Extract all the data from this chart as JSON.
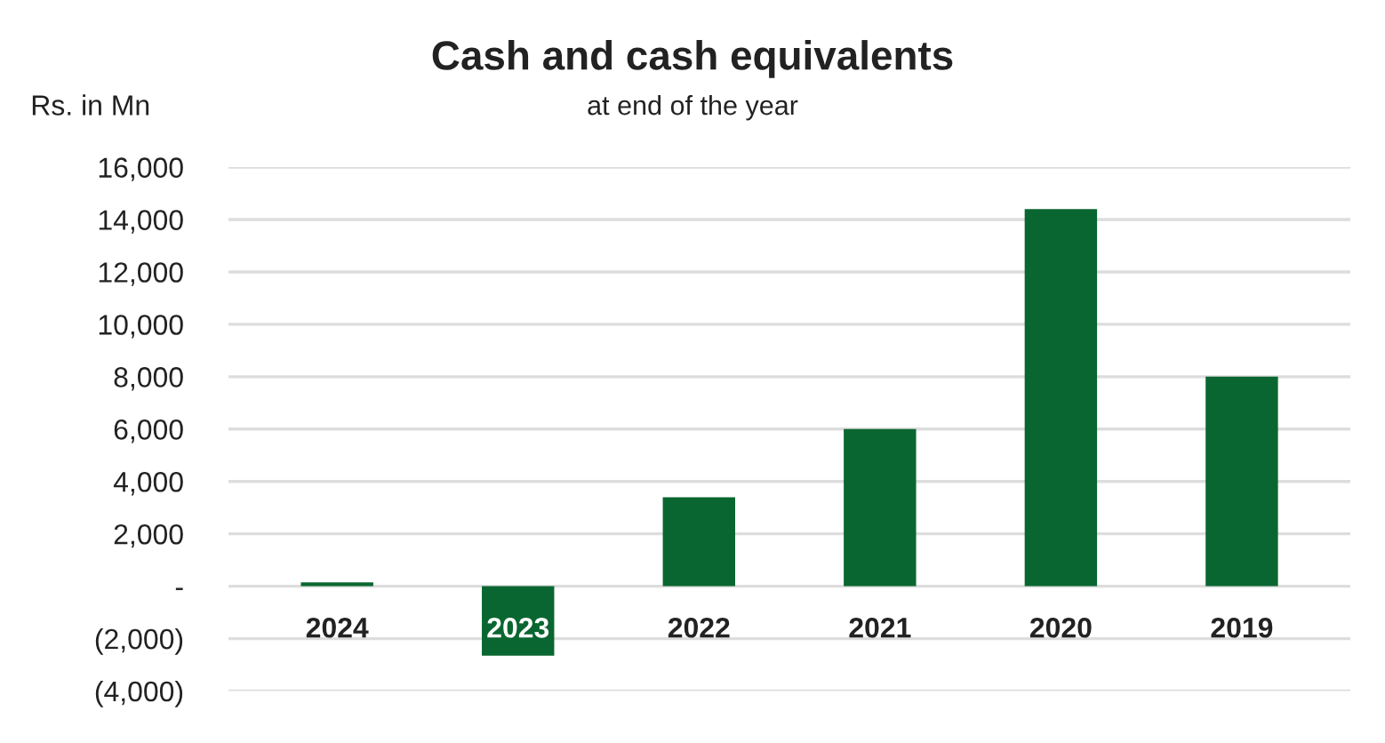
{
  "chart_data": {
    "type": "bar",
    "title": "Cash and cash equivalents",
    "subtitle": "at end of the year",
    "ylabel": "Rs. in Mn",
    "categories": [
      "2024",
      "2023",
      "2022",
      "2021",
      "2020",
      "2019"
    ],
    "values": [
      150,
      -2650,
      3400,
      6000,
      14400,
      8000
    ],
    "color": "#0a6630",
    "ylim": [
      -4000,
      16000
    ],
    "yticks": [
      {
        "value": -4000,
        "label": "(4,000)"
      },
      {
        "value": -2000,
        "label": "(2,000)"
      },
      {
        "value": 0,
        "label": "-"
      },
      {
        "value": 2000,
        "label": "2,000"
      },
      {
        "value": 4000,
        "label": "4,000"
      },
      {
        "value": 6000,
        "label": "6,000"
      },
      {
        "value": 8000,
        "label": "8,000"
      },
      {
        "value": 10000,
        "label": "10,000"
      },
      {
        "value": 12000,
        "label": "12,000"
      },
      {
        "value": 14000,
        "label": "14,000"
      },
      {
        "value": 16000,
        "label": "16,000"
      }
    ],
    "grid": "y"
  }
}
